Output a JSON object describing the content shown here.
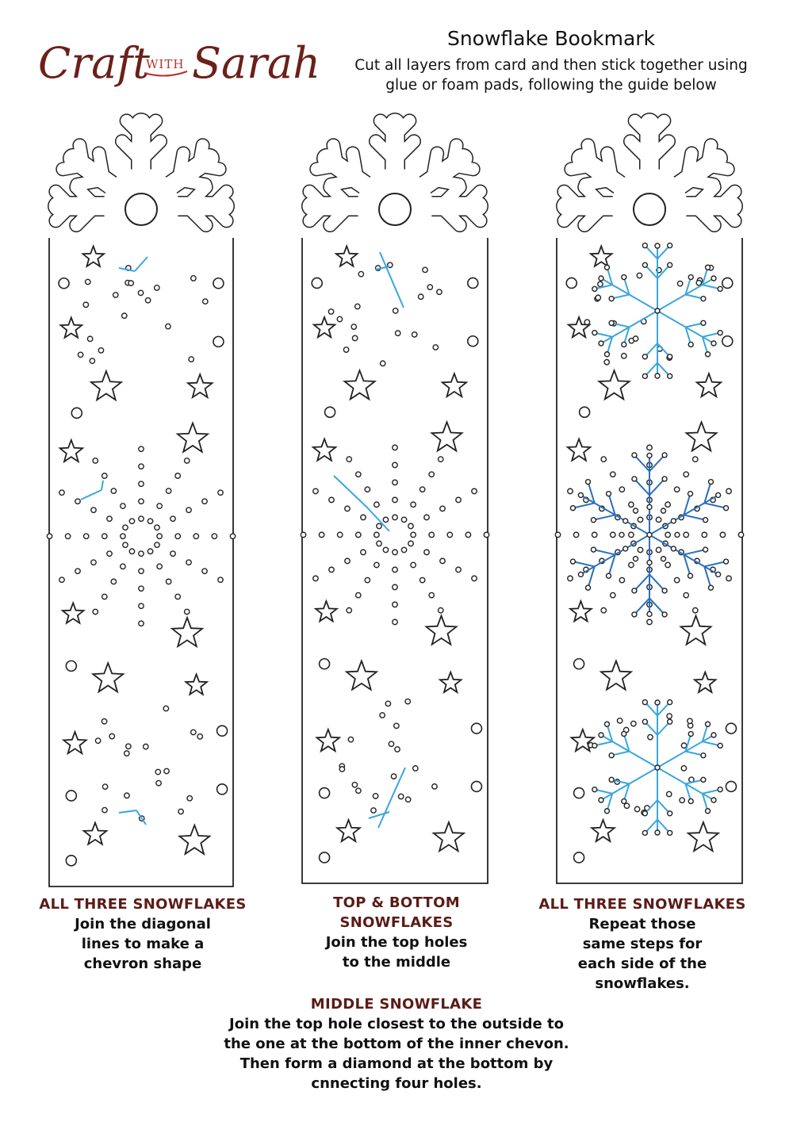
{
  "brand": {
    "logo_text": "Craft with Sarah",
    "logo_word1": "Craft",
    "logo_word2": "WITH",
    "logo_word3": "Sarah",
    "color": "#6b2019",
    "accent": "#b3322a"
  },
  "header": {
    "title": "Snowflake Bookmark",
    "subtitle_line1": "Cut all layers from card and then stick together using",
    "subtitle_line2": "glue or foam pads, following the guide below"
  },
  "colors": {
    "outline": "#222222",
    "light_blue": "#3aa6dd",
    "dark_blue": "#2b6fb8",
    "heading": "#5a1c17"
  },
  "captions": {
    "left": {
      "heading": "ALL THREE SNOWFLAKES",
      "line1": "Join the diagonal",
      "line2": "lines to make a",
      "line3": "chevron shape"
    },
    "center": {
      "heading1": "TOP & BOTTOM",
      "heading2": "SNOWFLAKES",
      "line1": "Join the top holes",
      "line2": "to the middle"
    },
    "right": {
      "heading": "ALL THREE SNOWFLAKES",
      "line1": "Repeat those",
      "line2": "same steps for",
      "line3": "each side of the",
      "line4": "snowflakes."
    },
    "bottom": {
      "heading": "MIDDLE SNOWFLAKE",
      "line1": "Join the top hole closest to the outside to",
      "line2": "the one at the bottom of the inner chevon.",
      "line3": "Then form a diamond at the bottom by",
      "line4": "cnnecting four holes."
    }
  },
  "bookmarks": [
    {
      "name": "bookmark-step-1",
      "step": 1
    },
    {
      "name": "bookmark-step-2",
      "step": 2
    },
    {
      "name": "bookmark-step-3",
      "step": 3
    }
  ]
}
